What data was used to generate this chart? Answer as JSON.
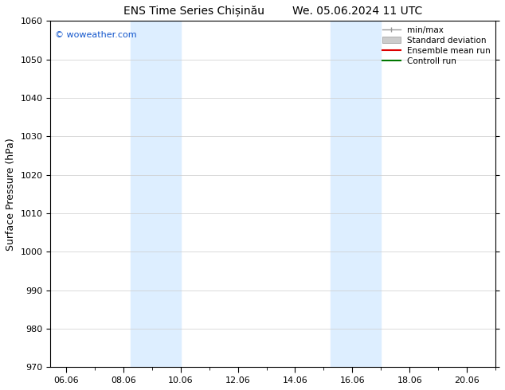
{
  "title1": "ENS Time Series Chișinău",
  "title2": "We. 05.06.2024 11 UTC",
  "ylabel": "Surface Pressure (hPa)",
  "ylim": [
    970,
    1060
  ],
  "yticks": [
    970,
    980,
    990,
    1000,
    1010,
    1020,
    1030,
    1040,
    1050,
    1060
  ],
  "date_start": "2024-06-05",
  "date_end": "2024-06-21",
  "xtick_labels": [
    "06.06",
    "08.06",
    "10.06",
    "12.06",
    "14.06",
    "16.06",
    "18.06",
    "20.06"
  ],
  "xtick_days": [
    6,
    8,
    10,
    12,
    14,
    16,
    18,
    20
  ],
  "shaded_bands": [
    {
      "day_start": 8.25,
      "day_end": 10.0
    },
    {
      "day_start": 15.25,
      "day_end": 17.0
    }
  ],
  "shaded_color": "#ddeeff",
  "watermark_text": "© woweather.com",
  "watermark_color": "#1155cc",
  "background_color": "#ffffff",
  "grid_color": "#cccccc",
  "title_fontsize": 10,
  "tick_fontsize": 8,
  "ylabel_fontsize": 9
}
